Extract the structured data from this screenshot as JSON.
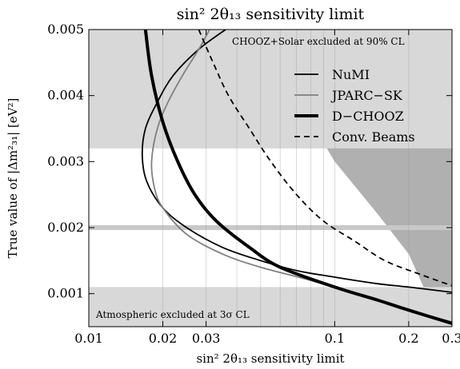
{
  "chart_data": {
    "type": "line",
    "title": "sin² 2θ₁₃ sensitivity limit",
    "xlabel": "sin² 2θ₁₃ sensitivity limit",
    "ylabel": "True value of |Δm²₃₁| [eV²]",
    "x_scale": "log",
    "xlim": [
      0.01,
      0.3
    ],
    "ylim": [
      0.0005,
      0.005
    ],
    "x_ticks": [
      {
        "value": 0.01,
        "label": "0.01"
      },
      {
        "value": 0.02,
        "label": "0.02"
      },
      {
        "value": 0.03,
        "label": "0.03"
      },
      {
        "value": 0.1,
        "label": "0.1"
      },
      {
        "value": 0.2,
        "label": "0.2"
      },
      {
        "value": 0.3,
        "label": "0.3"
      }
    ],
    "y_ticks": [
      {
        "value": 0.001,
        "label": "0.001"
      },
      {
        "value": 0.002,
        "label": "0.002"
      },
      {
        "value": 0.003,
        "label": "0.003"
      },
      {
        "value": 0.004,
        "label": "0.004"
      },
      {
        "value": 0.005,
        "label": "0.005"
      }
    ],
    "grid": "vertical lines at log minor ticks",
    "legend_position": "top-right",
    "series": [
      {
        "name": "NuMI",
        "color": "#000000",
        "style": "solid-thin",
        "points": [
          [
            0.036,
            0.005
          ],
          [
            0.028,
            0.0047
          ],
          [
            0.022,
            0.0043
          ],
          [
            0.019,
            0.0039
          ],
          [
            0.017,
            0.0035
          ],
          [
            0.0165,
            0.0031
          ],
          [
            0.0172,
            0.0027
          ],
          [
            0.02,
            0.0023
          ],
          [
            0.025,
            0.002
          ],
          [
            0.035,
            0.0017
          ],
          [
            0.05,
            0.0015
          ],
          [
            0.07,
            0.00135
          ],
          [
            0.1,
            0.00125
          ],
          [
            0.15,
            0.00115
          ],
          [
            0.2,
            0.0011
          ],
          [
            0.3,
            0.00102
          ]
        ]
      },
      {
        "name": "JPARC−SK",
        "color": "#808080",
        "style": "solid-thin",
        "points": [
          [
            0.031,
            0.005
          ],
          [
            0.028,
            0.0047
          ],
          [
            0.024,
            0.0043
          ],
          [
            0.021,
            0.0039
          ],
          [
            0.019,
            0.0035
          ],
          [
            0.018,
            0.003
          ],
          [
            0.0185,
            0.0026
          ],
          [
            0.02,
            0.0023
          ],
          [
            0.025,
            0.0019
          ],
          [
            0.035,
            0.0016
          ],
          [
            0.05,
            0.0014
          ],
          [
            0.08,
            0.0012
          ],
          [
            0.12,
            0.001
          ],
          [
            0.18,
            0.0008
          ],
          [
            0.25,
            0.00065
          ],
          [
            0.3,
            0.00057
          ]
        ]
      },
      {
        "name": "D−CHOOZ",
        "color": "#000000",
        "style": "solid-thick",
        "points": [
          [
            0.017,
            0.005
          ],
          [
            0.018,
            0.0043
          ],
          [
            0.02,
            0.0036
          ],
          [
            0.023,
            0.003
          ],
          [
            0.027,
            0.0025
          ],
          [
            0.033,
            0.0021
          ],
          [
            0.045,
            0.0017
          ],
          [
            0.06,
            0.0014
          ],
          [
            0.1,
            0.0011
          ],
          [
            0.15,
            0.0009
          ],
          [
            0.2,
            0.00075
          ],
          [
            0.3,
            0.00055
          ]
        ]
      },
      {
        "name": "Conv. Beams",
        "color": "#000000",
        "style": "dashed",
        "points": [
          [
            0.028,
            0.005
          ],
          [
            0.032,
            0.0045
          ],
          [
            0.037,
            0.004
          ],
          [
            0.045,
            0.0035
          ],
          [
            0.055,
            0.003
          ],
          [
            0.07,
            0.0025
          ],
          [
            0.09,
            0.0021
          ],
          [
            0.12,
            0.0018
          ],
          [
            0.16,
            0.0015
          ],
          [
            0.22,
            0.0013
          ],
          [
            0.3,
            0.00112
          ]
        ]
      }
    ],
    "regions": [
      {
        "label": "CHOOZ+Solar excluded at 90% CL",
        "color": "#b0b0b0",
        "boundary": [
          [
            0.0475,
            0.005
          ],
          [
            0.1,
            0.003
          ],
          [
            0.15,
            0.0022
          ],
          [
            0.2,
            0.0016
          ],
          [
            0.23,
            0.0011
          ],
          [
            0.26,
            0.0005
          ]
        ]
      },
      {
        "label": "Atmospheric excluded at 3σ CL",
        "color": "#d8d8d8",
        "y_range": [
          0.0005,
          0.0011
        ]
      },
      {
        "color": "#d8d8d8",
        "y_range": [
          0.0032,
          0.005
        ]
      },
      {
        "color": "#c8c8c8",
        "y_line": 0.002
      }
    ]
  }
}
